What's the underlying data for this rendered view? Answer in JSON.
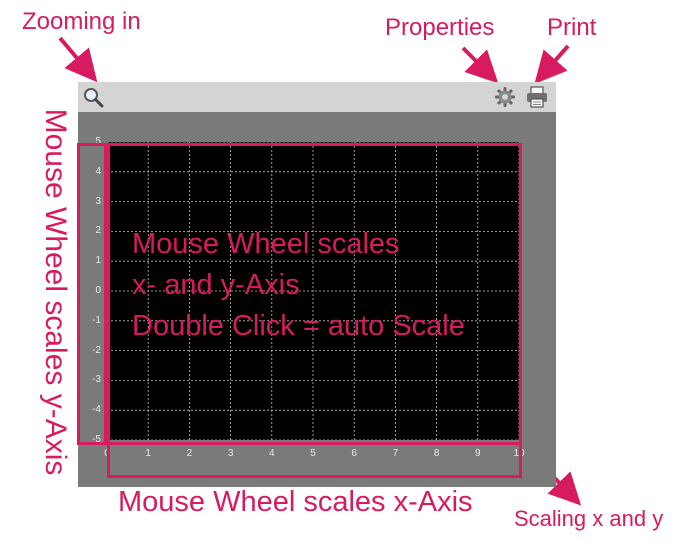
{
  "annotations": {
    "zooming": "Zooming in",
    "properties": "Properties",
    "print": "Print",
    "plot_note_line1": "Mouse Wheel scales",
    "plot_note_line2": "x- and y-Axis",
    "plot_note_line3": "Double Click = auto Scale",
    "y_axis_note": "Mouse Wheel scales y-Axis",
    "x_axis_note": "Mouse Wheel scales x-Axis",
    "corner_note": "Scaling x and y"
  },
  "toolbar": {
    "zoom_icon": "magnifier-icon",
    "properties_icon": "gear-icon",
    "print_icon": "printer-icon"
  },
  "colors": {
    "accent": "#d81b60",
    "toolbar_bg": "#d4d4d4",
    "frame_bg": "#7a7a7a",
    "plot_bg": "#000000",
    "grid": "#bfbfbf"
  },
  "chart_data": {
    "type": "line",
    "x_ticks": [
      "0",
      "1",
      "2",
      "3",
      "4",
      "5",
      "6",
      "7",
      "8",
      "9",
      "10"
    ],
    "y_ticks": [
      "5",
      "4",
      "3",
      "2",
      "1",
      "0",
      "-1",
      "-2",
      "-3",
      "-4",
      "-5"
    ],
    "xlim": [
      0,
      10
    ],
    "ylim": [
      -5,
      5
    ],
    "grid": true,
    "series": []
  }
}
